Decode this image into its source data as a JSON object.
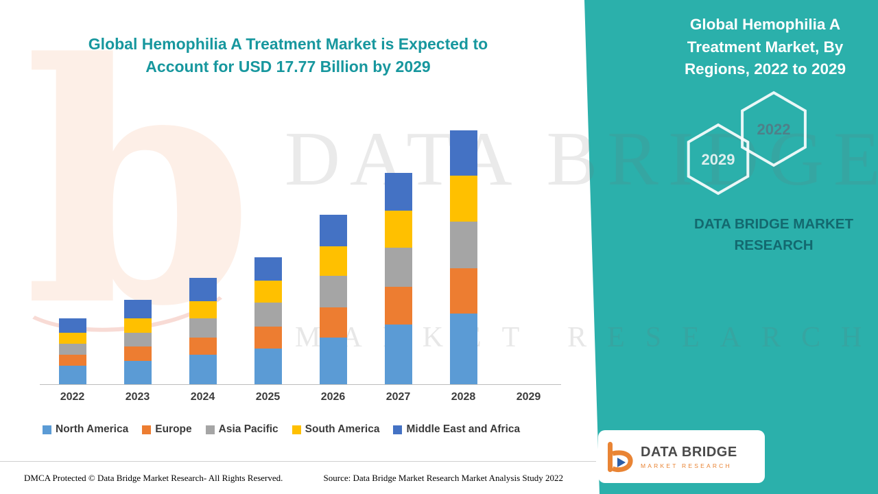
{
  "colors": {
    "teal_bg": "#2BB0AB",
    "title_teal": "#17979E",
    "axis_line": "#BDBDBD",
    "north_america": "#5B9BD5",
    "europe": "#ED7D31",
    "asia_pacific": "#A5A5A5",
    "south_america": "#FFC000",
    "middle_east_africa": "#4472C4",
    "logo_orange": "#E98434",
    "logo_blue": "#2B5DA7"
  },
  "header": {
    "title": "Global Hemophilia A Treatment Market is Expected to Account for USD 17.77 Billion by 2029"
  },
  "chart_data": {
    "type": "bar",
    "stacked": true,
    "title": "Global Hemophilia A Treatment Market is Expected to Account for USD 17.77 Billion by 2029",
    "unit": "USD Billion",
    "categories": [
      "2022",
      "2023",
      "2024",
      "2025",
      "2026",
      "2027",
      "2028",
      "2029"
    ],
    "series": [
      {
        "name": "North America",
        "color": "#5B9BD5",
        "values": [
          1.2,
          1.5,
          1.9,
          2.3,
          3.0,
          3.8,
          4.5,
          null
        ]
      },
      {
        "name": "Europe",
        "color": "#ED7D31",
        "values": [
          0.7,
          0.9,
          1.1,
          1.4,
          1.9,
          2.4,
          2.9,
          null
        ]
      },
      {
        "name": "Asia Pacific",
        "color": "#A5A5A5",
        "values": [
          0.7,
          0.9,
          1.2,
          1.5,
          2.0,
          2.5,
          3.0,
          null
        ]
      },
      {
        "name": "South America",
        "color": "#FFC000",
        "values": [
          0.7,
          0.9,
          1.1,
          1.4,
          1.9,
          2.4,
          2.9,
          null
        ]
      },
      {
        "name": "Middle East and Africa",
        "color": "#4472C4",
        "values": [
          0.9,
          1.2,
          1.5,
          1.5,
          2.0,
          2.4,
          2.9,
          null
        ]
      }
    ],
    "totals_estimated": [
      4.2,
      5.4,
      6.8,
      8.1,
      10.8,
      13.5,
      16.2,
      null
    ],
    "ylim": [
      0,
      18
    ],
    "grid": false,
    "xlabel": "",
    "ylabel": "",
    "legend_position": "bottom"
  },
  "right_panel": {
    "title": "Global Hemophilia A Treatment Market, By Regions, 2022 to 2029",
    "badge_back": "2029",
    "badge_front": "2022",
    "brand": "DATA BRIDGE MARKET RESEARCH"
  },
  "watermark": {
    "letter": "b",
    "line1": "DATA BRIDGE",
    "line2": "MARKET RESEARCH"
  },
  "footer": {
    "dmca": "DMCA Protected © Data Bridge Market Research- All Rights Reserved.",
    "source": "Source: Data Bridge Market Research Market Analysis Study 2022"
  },
  "logo": {
    "name": "DATA BRIDGE",
    "subtitle": "MARKET RESEARCH"
  }
}
